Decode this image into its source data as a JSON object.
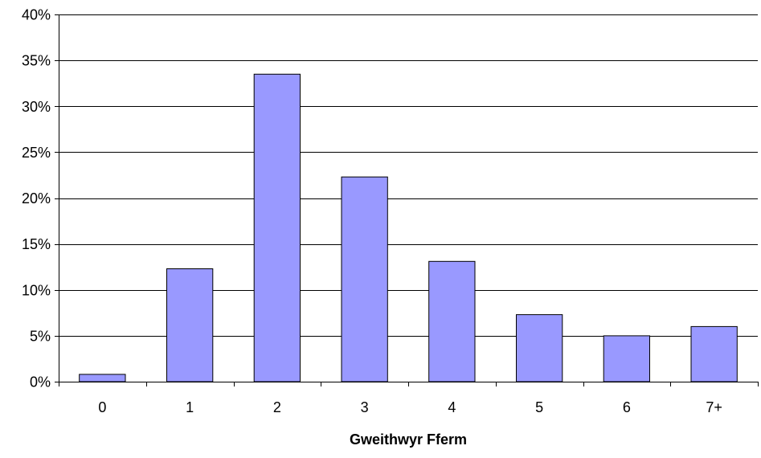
{
  "chart_data": {
    "type": "bar",
    "title": "",
    "xlabel": "Gweithwyr Fferm",
    "ylabel": "",
    "categories": [
      "0",
      "1",
      "2",
      "3",
      "4",
      "5",
      "6",
      "7+"
    ],
    "values": [
      0.8,
      12.3,
      33.5,
      22.3,
      13.1,
      7.3,
      5.0,
      6.0
    ],
    "ylim": [
      0,
      40
    ],
    "yticks": [
      0,
      5,
      10,
      15,
      20,
      25,
      30,
      35,
      40
    ],
    "ytick_labels": [
      "0%",
      "5%",
      "10%",
      "15%",
      "20%",
      "25%",
      "30%",
      "35%",
      "40%"
    ],
    "grid": true,
    "legend": "none",
    "colors": {
      "bar_fill": "#9999ff",
      "bar_stroke": "#000000",
      "grid": "#000000",
      "axis": "#000000",
      "text": "#000000"
    }
  }
}
